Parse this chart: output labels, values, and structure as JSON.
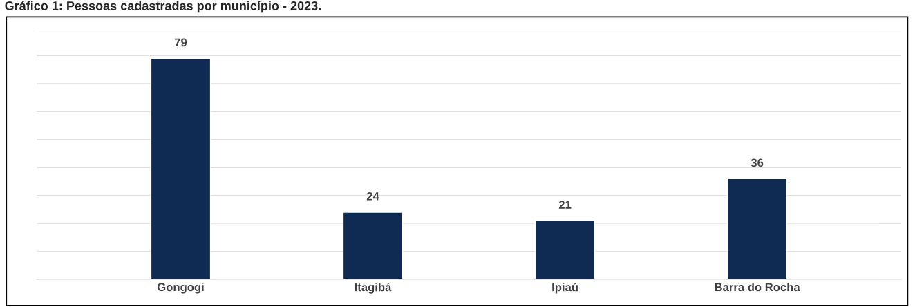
{
  "chart_data": {
    "type": "bar",
    "title": "Gráfico 1: Pessoas cadastradas por município - 2023.",
    "categories": [
      "Gongogi",
      "Itagibá",
      "Ipiaú",
      "Barra do Rocha"
    ],
    "values": [
      79,
      24,
      21,
      36
    ],
    "color": "#0f2b54",
    "data_labels": true,
    "ylim": [
      0,
      90
    ],
    "yticks": [
      {
        "value": 0,
        "label": null
      },
      {
        "value": 10,
        "label": null
      },
      {
        "value": 20,
        "label": null
      },
      {
        "value": 30,
        "label": null
      },
      {
        "value": 40,
        "label": null
      },
      {
        "value": 50,
        "label": null
      },
      {
        "value": 60,
        "label": null
      },
      {
        "value": 70,
        "label": null
      },
      {
        "value": 80,
        "label": null
      },
      {
        "value": 90,
        "label": null
      }
    ],
    "tick_labels": "x",
    "grid": "y",
    "legend": false
  }
}
